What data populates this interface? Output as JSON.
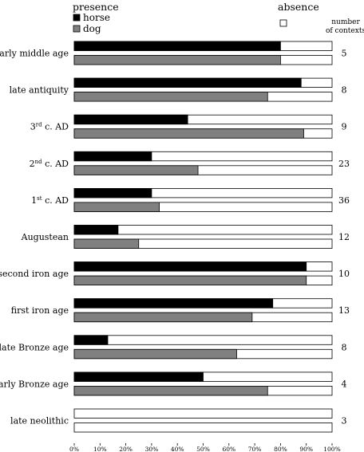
{
  "chart_data": {
    "type": "bar",
    "orientation": "horizontal",
    "stacked_percent": true,
    "categories": [
      "early middle age",
      "late antiquity",
      "3rd c. AD",
      "2nd c. AD",
      "1st c. AD",
      "Augustean",
      "second iron age",
      "first iron age",
      "late Bronze age",
      "early Bronze age",
      "late neolithic"
    ],
    "category_parts": [
      {
        "base": "early middle age",
        "sup": "",
        "tail": ""
      },
      {
        "base": "late antiquity",
        "sup": "",
        "tail": ""
      },
      {
        "base": "3",
        "sup": "rd",
        "tail": " c. AD"
      },
      {
        "base": "2",
        "sup": "nd",
        "tail": " c. AD"
      },
      {
        "base": "1",
        "sup": "st",
        "tail": " c. AD"
      },
      {
        "base": "Augustean",
        "sup": "",
        "tail": ""
      },
      {
        "base": "second iron age",
        "sup": "",
        "tail": ""
      },
      {
        "base": "first iron age",
        "sup": "",
        "tail": ""
      },
      {
        "base": "late Bronze age",
        "sup": "",
        "tail": ""
      },
      {
        "base": "early Bronze age",
        "sup": "",
        "tail": ""
      },
      {
        "base": "late neolithic",
        "sup": "",
        "tail": ""
      }
    ],
    "series": [
      {
        "name": "horse",
        "color": "#000000",
        "values": [
          80,
          88,
          44,
          30,
          30,
          17,
          90,
          77,
          13,
          50,
          0
        ]
      },
      {
        "name": "dog",
        "color": "#808080",
        "values": [
          80,
          75,
          89,
          48,
          33,
          25,
          90,
          69,
          63,
          75,
          0
        ]
      }
    ],
    "absence_label": "absence",
    "absence_color": "#ffffff",
    "legend_title": "presence",
    "number_of_contexts_label_lines": [
      "number",
      "of contexts"
    ],
    "number_of_contexts": [
      "5",
      "8",
      "9",
      "23",
      "36",
      "12",
      "10",
      "13",
      "8",
      "4",
      "3"
    ],
    "x_ticks": [
      "0%",
      "10%",
      "20%",
      "30%",
      "40%",
      "50%",
      "60%",
      "70%",
      "80%",
      "90%",
      "100%"
    ],
    "xlim": [
      0,
      100
    ],
    "grid": false,
    "legend_position": "top"
  }
}
